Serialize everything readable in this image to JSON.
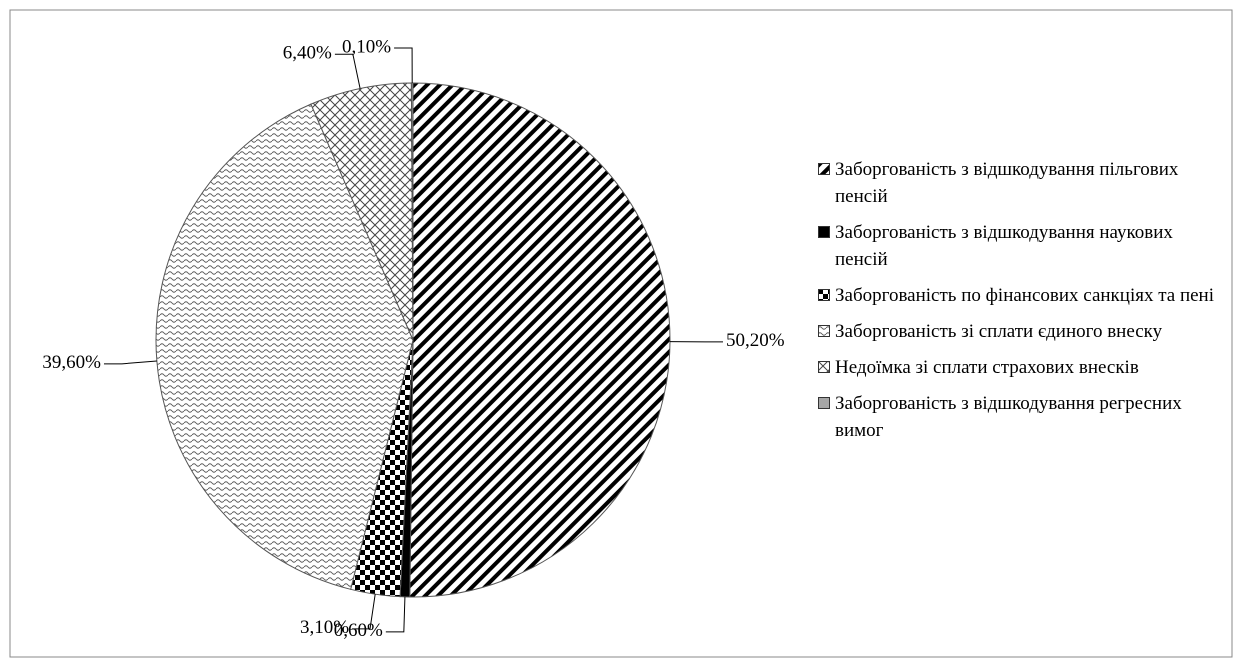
{
  "chart_data": {
    "type": "pie",
    "categories": [
      "Заборгованість з відшкодування пільгових пенсій",
      "Заборгованість з відшкодування наукових пенсій",
      "Заборгованість по фінансових санкціях та пені",
      "Заборгованість зі сплати єдиного внеску",
      "Недоїмка зі сплати страхових внесків",
      "Заборгованість з відшкодування регресних вимог"
    ],
    "values": [
      50.2,
      0.6,
      3.1,
      39.6,
      6.4,
      0.1
    ],
    "value_labels": [
      "50,20%",
      "0,60%",
      "3,10%",
      "39,60%",
      "6,40%",
      "0,10%"
    ],
    "patterns": [
      "diagonal",
      "solid",
      "checker",
      "wave",
      "crosshatch",
      "gray"
    ],
    "legend": "right"
  }
}
